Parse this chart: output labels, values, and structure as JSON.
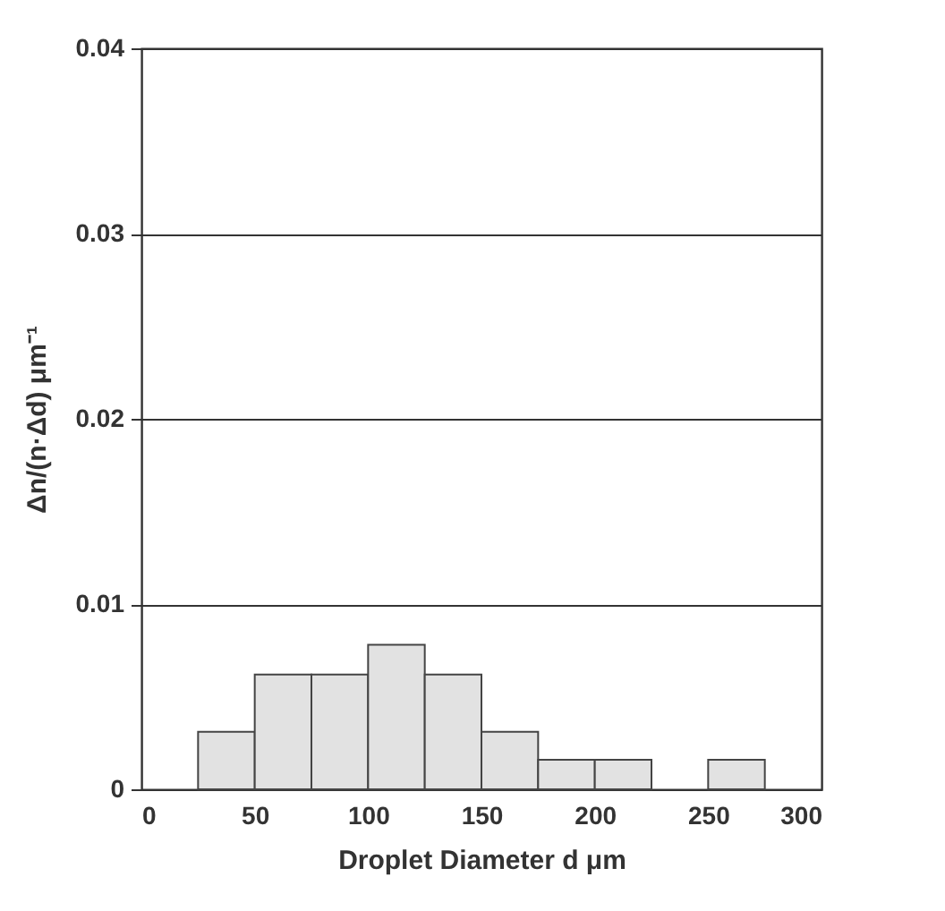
{
  "chart_data": {
    "type": "histogram",
    "xlabel": "Droplet  Diameter   d    μm",
    "ylabel": "Δn/(n·Δd)    μm⁻¹",
    "bins": [
      25,
      50,
      75,
      100,
      125,
      150,
      175,
      200,
      225,
      250,
      275
    ],
    "values": [
      0.0031,
      0.0062,
      0.0062,
      0.0078,
      0.0062,
      0.0031,
      0.0016,
      0.0016,
      0,
      0.0016
    ],
    "color": "#e2e2e2",
    "xlim": [
      0,
      300
    ],
    "xticks": [
      0,
      50,
      100,
      150,
      200,
      250,
      300
    ],
    "ylim": [
      0,
      0.04
    ],
    "yticks": [
      0,
      0.01,
      0.02,
      0.03,
      0.04
    ],
    "grid": "y"
  }
}
